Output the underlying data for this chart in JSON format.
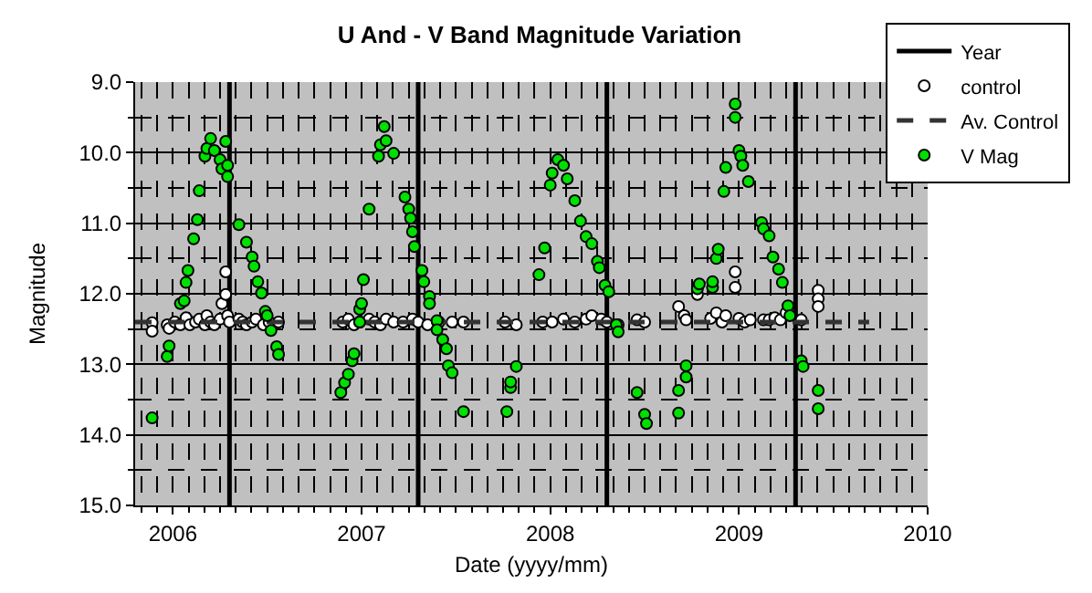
{
  "chart_data": {
    "type": "scatter",
    "title": "U And - V Band Magnitude Variation",
    "xlabel": "Date (yyyy/mm)",
    "ylabel": "Magnitude",
    "xlim": [
      2005.8,
      2010.0
    ],
    "xticks": [
      2006,
      2007,
      2008,
      2009,
      2010
    ],
    "ylim": [
      15,
      9
    ],
    "yticks": [
      {
        "value": 9,
        "label": "9.0"
      },
      {
        "value": 10,
        "label": "10.0"
      },
      {
        "value": 11,
        "label": "11.0"
      },
      {
        "value": 12,
        "label": "12.0"
      },
      {
        "value": 13,
        "label": "13.0"
      },
      {
        "value": 14,
        "label": "14.0"
      },
      {
        "value": 15,
        "label": "15.0"
      }
    ],
    "grid": true,
    "legend": "top right",
    "series": [
      {
        "name": "Year",
        "type": "line",
        "color": "#000000",
        "line_style": "solid",
        "marker": "none",
        "x": [
          2006.3,
          2006.3,
          null,
          2007.3,
          2007.3,
          null,
          2008.3,
          2008.3,
          null,
          2009.3,
          2009.3
        ],
        "values": [
          9,
          15,
          null,
          9,
          15,
          null,
          9,
          15,
          null,
          9,
          15
        ]
      },
      {
        "name": "control",
        "color": "#ffffff",
        "marker": "circle",
        "x": [
          2005.89,
          2005.89,
          2005.97,
          2005.98,
          2006.01,
          2006.04,
          2006.07,
          2006.09,
          2006.12,
          2006.14,
          2006.17,
          2006.18,
          2006.2,
          2006.22,
          2006.25,
          2006.26,
          2006.28,
          2006.28,
          2006.29,
          2006.3,
          2006.35,
          2006.37,
          2006.39,
          2006.42,
          2006.44,
          2006.48,
          2006.51,
          2006.56,
          2006.9,
          2006.93,
          2006.96,
          2006.99,
          2007.04,
          2007.07,
          2007.1,
          2007.13,
          2007.17,
          2007.22,
          2007.27,
          2007.3,
          2007.35,
          2007.41,
          2007.48,
          2007.54,
          2007.76,
          2007.82,
          2007.96,
          2008.01,
          2008.07,
          2008.13,
          2008.19,
          2008.22,
          2008.27,
          2008.3,
          2008.36,
          2008.46,
          2008.5,
          2008.68,
          2008.71,
          2008.72,
          2008.78,
          2008.85,
          2008.88,
          2008.91,
          2008.93,
          2008.98,
          2008.98,
          2009.0,
          2009.03,
          2009.06,
          2009.13,
          2009.16,
          2009.19,
          2009.22,
          2009.25,
          2009.33,
          2009.42,
          2009.42,
          2009.42
        ],
        "values": [
          12.41,
          12.53,
          12.44,
          12.49,
          12.4,
          12.44,
          12.34,
          12.44,
          12.4,
          12.36,
          12.44,
          12.31,
          12.4,
          12.44,
          12.36,
          12.14,
          12.01,
          11.69,
          12.31,
          12.4,
          12.36,
          12.4,
          12.44,
          12.4,
          12.36,
          12.44,
          12.4,
          12.4,
          12.4,
          12.36,
          12.44,
          12.4,
          12.36,
          12.4,
          12.44,
          12.36,
          12.4,
          12.4,
          12.36,
          12.4,
          12.44,
          12.4,
          12.4,
          12.4,
          12.4,
          12.44,
          12.4,
          12.4,
          12.36,
          12.4,
          12.36,
          12.31,
          12.36,
          12.4,
          12.44,
          12.37,
          12.4,
          12.18,
          12.31,
          12.37,
          12.01,
          12.35,
          12.27,
          12.4,
          12.31,
          11.69,
          11.91,
          12.35,
          12.4,
          12.37,
          12.37,
          12.37,
          12.34,
          12.37,
          12.27,
          12.37,
          11.95,
          12.07,
          12.18
        ]
      },
      {
        "name": "Av. Control",
        "type": "line",
        "color": "#333333",
        "line_style": "dashed",
        "marker": "none",
        "x": [
          2005.8,
          2009.69
        ],
        "values": [
          12.4,
          12.4
        ]
      },
      {
        "name": "V Mag",
        "color": "#00e000",
        "marker": "circle",
        "x": [
          2005.89,
          2005.97,
          2005.98,
          2006.04,
          2006.06,
          2006.07,
          2006.08,
          2006.11,
          2006.13,
          2006.14,
          2006.17,
          2006.18,
          2006.2,
          2006.22,
          2006.25,
          2006.26,
          2006.28,
          2006.29,
          2006.29,
          2006.35,
          2006.39,
          2006.42,
          2006.43,
          2006.45,
          2006.47,
          2006.49,
          2006.5,
          2006.52,
          2006.55,
          2006.56,
          2006.89,
          2006.91,
          2006.93,
          2006.95,
          2006.96,
          2006.99,
          2006.99,
          2007.0,
          2007.01,
          2007.04,
          2007.09,
          2007.1,
          2007.12,
          2007.13,
          2007.17,
          2007.23,
          2007.25,
          2007.26,
          2007.27,
          2007.28,
          2007.32,
          2007.33,
          2007.36,
          2007.36,
          2007.4,
          2007.4,
          2007.43,
          2007.45,
          2007.46,
          2007.48,
          2007.54,
          2007.77,
          2007.79,
          2007.79,
          2007.82,
          2007.94,
          2007.97,
          2008.0,
          2008.01,
          2008.04,
          2008.07,
          2008.09,
          2008.13,
          2008.16,
          2008.19,
          2008.22,
          2008.25,
          2008.26,
          2008.29,
          2008.31,
          2008.35,
          2008.36,
          2008.46,
          2008.5,
          2008.51,
          2008.68,
          2008.68,
          2008.72,
          2008.72,
          2008.78,
          2008.79,
          2008.86,
          2008.86,
          2008.88,
          2008.89,
          2008.92,
          2008.93,
          2008.98,
          2008.98,
          2009.0,
          2009.01,
          2009.02,
          2009.05,
          2009.12,
          2009.13,
          2009.16,
          2009.18,
          2009.21,
          2009.23,
          2009.26,
          2009.27,
          2009.33,
          2009.34,
          2009.42,
          2009.42
        ],
        "values": [
          13.76,
          12.89,
          12.74,
          12.14,
          12.1,
          11.84,
          11.67,
          11.22,
          10.95,
          10.54,
          10.05,
          9.94,
          9.8,
          9.97,
          10.1,
          10.23,
          9.84,
          10.18,
          10.34,
          11.02,
          11.27,
          11.48,
          11.61,
          11.83,
          11.99,
          12.25,
          12.31,
          12.52,
          12.75,
          12.86,
          13.4,
          13.26,
          13.14,
          12.95,
          12.85,
          12.22,
          12.4,
          12.14,
          11.8,
          10.8,
          10.05,
          9.89,
          9.63,
          9.83,
          10.01,
          10.63,
          10.8,
          10.93,
          11.12,
          11.33,
          11.67,
          11.83,
          12.04,
          12.14,
          12.38,
          12.51,
          12.65,
          12.78,
          13.02,
          13.12,
          13.67,
          13.67,
          13.33,
          13.25,
          13.03,
          11.73,
          11.35,
          10.46,
          10.29,
          10.1,
          10.18,
          10.37,
          10.68,
          10.97,
          11.19,
          11.29,
          11.54,
          11.63,
          11.88,
          11.97,
          12.44,
          12.54,
          13.4,
          13.71,
          13.84,
          13.37,
          13.69,
          13.02,
          13.18,
          11.93,
          11.86,
          11.91,
          11.83,
          11.5,
          11.37,
          10.55,
          10.21,
          9.31,
          9.5,
          9.97,
          10.05,
          10.18,
          10.41,
          10.99,
          11.08,
          11.18,
          11.48,
          11.65,
          11.84,
          12.17,
          12.31,
          12.95,
          13.03,
          13.37,
          13.63
        ]
      }
    ]
  }
}
